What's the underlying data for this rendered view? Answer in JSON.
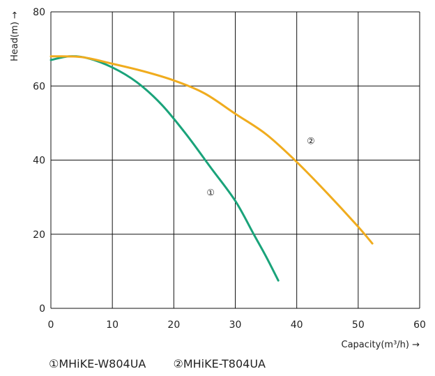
{
  "chart_data": {
    "type": "line",
    "xlabel": "Capacity(m³/h) →",
    "ylabel": "Head(m) →",
    "xlim": [
      0,
      60
    ],
    "ylim": [
      0,
      80
    ],
    "x_ticks": [
      "0",
      "10",
      "20",
      "30",
      "40",
      "50",
      "60"
    ],
    "y_ticks": [
      "0",
      "20",
      "40",
      "60",
      "80"
    ],
    "grid": true,
    "series": [
      {
        "name": "MHiKE-W804UA",
        "marker": "①",
        "color": "#1aa37a",
        "points": [
          [
            0,
            67
          ],
          [
            3,
            68
          ],
          [
            6,
            67.5
          ],
          [
            10,
            65
          ],
          [
            14,
            61
          ],
          [
            18,
            55
          ],
          [
            22,
            47
          ],
          [
            26,
            38
          ],
          [
            30,
            29
          ],
          [
            33,
            20
          ],
          [
            35,
            14
          ],
          [
            37,
            7.5
          ]
        ]
      },
      {
        "name": "MHiKE-T804UA",
        "marker": "②",
        "color": "#f0ac1e",
        "points": [
          [
            0,
            68
          ],
          [
            5,
            67.8
          ],
          [
            10,
            66
          ],
          [
            15,
            64
          ],
          [
            20,
            61.5
          ],
          [
            25,
            58
          ],
          [
            30,
            52.5
          ],
          [
            35,
            47
          ],
          [
            40,
            39.5
          ],
          [
            45,
            31
          ],
          [
            50,
            22
          ],
          [
            52.3,
            17.5
          ]
        ]
      }
    ],
    "legend": [
      {
        "marker": "①",
        "label": "MHiKE-W804UA"
      },
      {
        "marker": "②",
        "label": "MHiKE-T804UA"
      }
    ]
  }
}
